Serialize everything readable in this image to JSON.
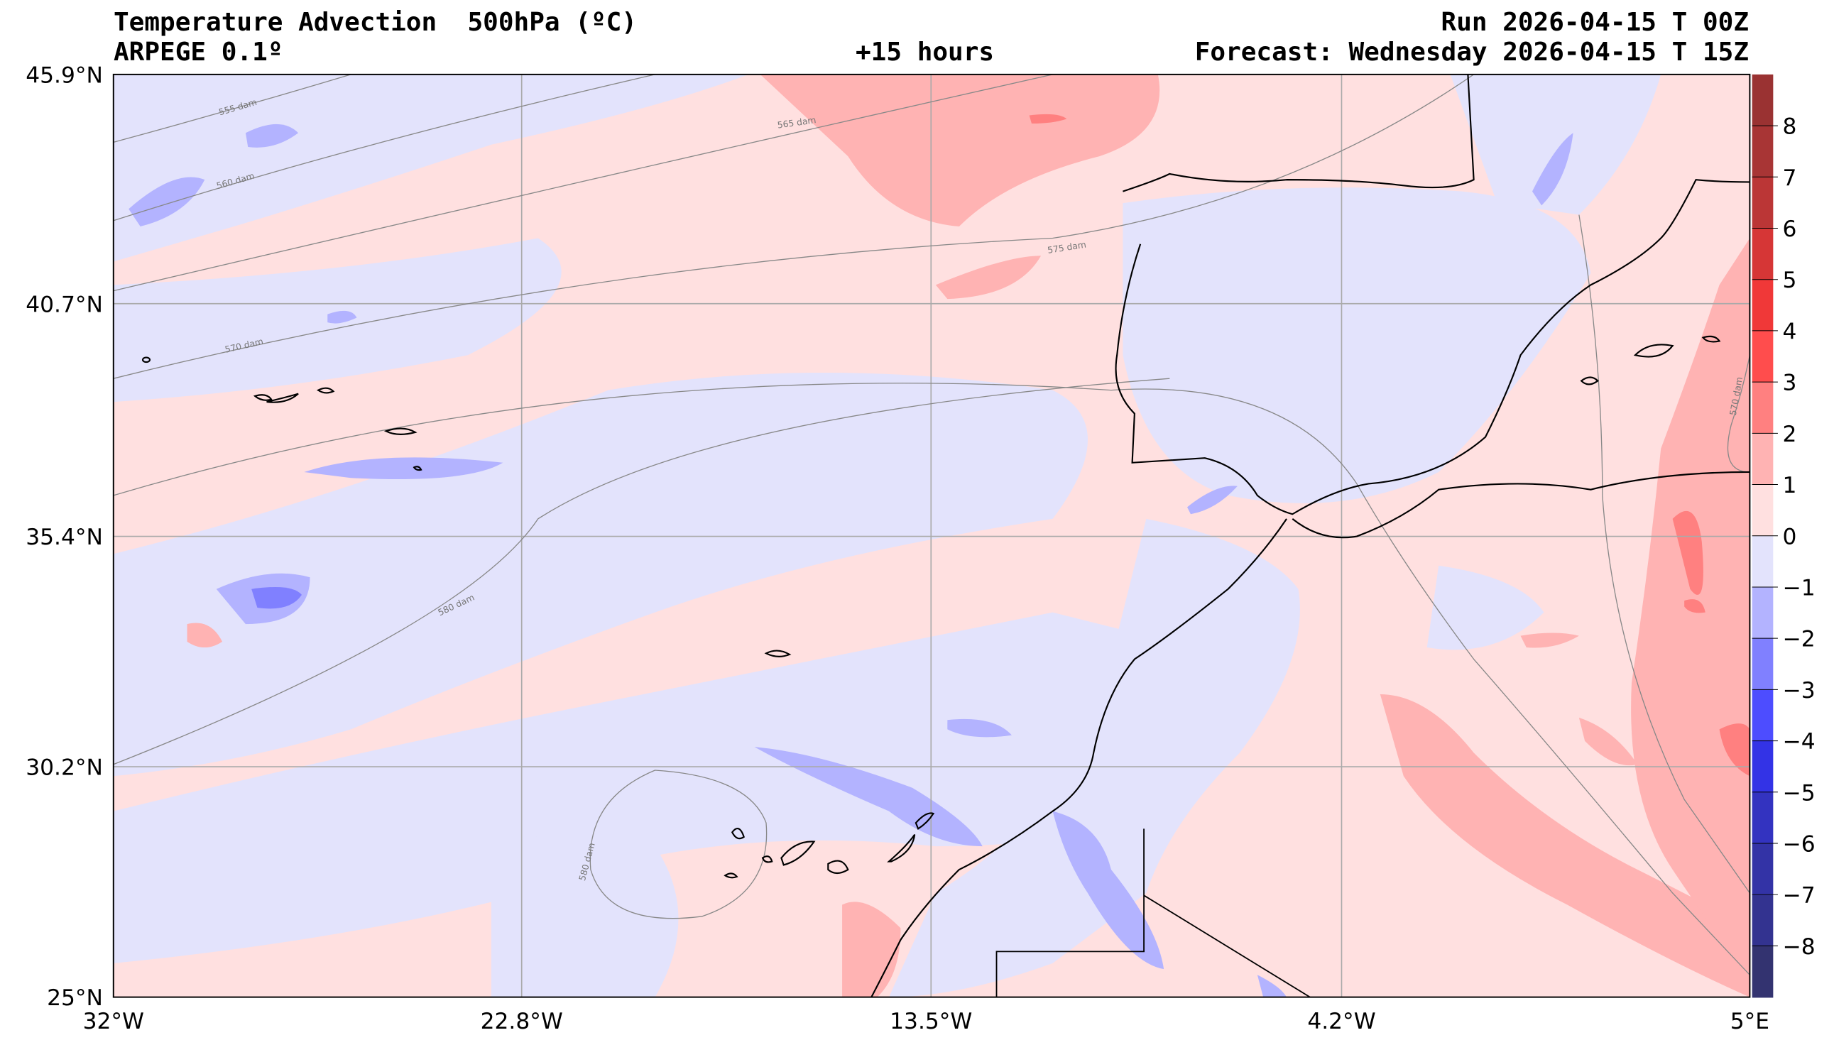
{
  "header": {
    "title": "Temperature Advection  500hPa (ºC)",
    "model": "ARPEGE 0.1º",
    "lead": "+15 hours",
    "run": "Run 2026-04-15 T 00Z",
    "forecast": "Forecast: Wednesday 2026-04-15 T 15Z"
  },
  "chart_data": {
    "type": "heatmap",
    "title": "Temperature Advection 500hPa (ºC)",
    "variable": "temperature advection",
    "units": "ºC",
    "xlim": [
      -32,
      5
    ],
    "ylim": [
      25,
      45.9
    ],
    "x_ticks": [
      "32°W",
      "22.8°W",
      "13.5°W",
      "4.2°W",
      "5°E"
    ],
    "y_ticks": [
      "45.9°N",
      "40.7°N",
      "35.4°N",
      "30.2°N",
      "25°N"
    ],
    "grid": true,
    "colorbar": {
      "placement": "right",
      "levels": [
        -8,
        -7,
        -6,
        -5,
        -4,
        -3,
        -2,
        -1,
        0,
        1,
        2,
        3,
        4,
        5,
        6,
        7,
        8
      ],
      "tick_labels": [
        "8",
        "7",
        "6",
        "5",
        "4",
        "3",
        "2",
        "1",
        "0",
        "−1",
        "−2",
        "−3",
        "−4",
        "−5",
        "−6",
        "−7",
        "−8"
      ],
      "colors_high_to_low": [
        "#9a3232",
        "#a83535",
        "#bb3636",
        "#d63636",
        "#f03838",
        "#ff4d4d",
        "#ff8080",
        "#ffb3b3",
        "#ffe0e0",
        "#e3e3fc",
        "#b3b3ff",
        "#8080ff",
        "#4d4dff",
        "#3333e6",
        "#3333c0",
        "#3333a6",
        "#333390",
        "#333370"
      ]
    },
    "contour_labels": [
      "555 dam",
      "560 dam",
      "565 dam",
      "570 dam",
      "575 dam",
      "580 dam",
      "580 dam",
      "570 dam"
    ]
  }
}
